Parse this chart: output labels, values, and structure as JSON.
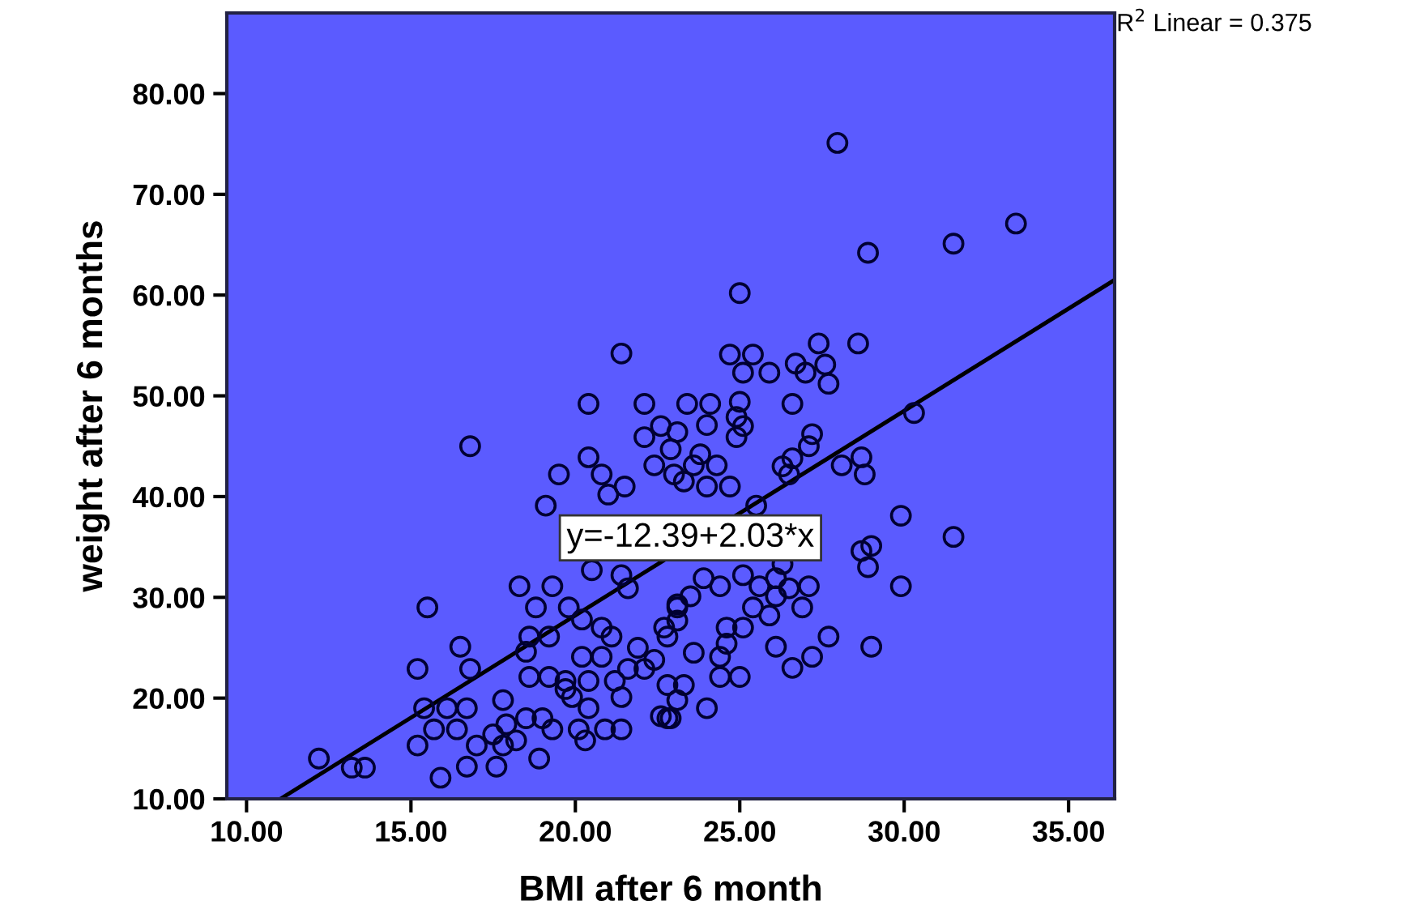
{
  "chart_data": {
    "type": "scatter",
    "xlabel": "BMI after 6 month",
    "ylabel": "weight after 6 months",
    "xlim": [
      9.4,
      36.4
    ],
    "ylim": [
      10,
      88
    ],
    "xticks": [
      {
        "value": 10,
        "label": "10.00"
      },
      {
        "value": 15,
        "label": "15.00"
      },
      {
        "value": 20,
        "label": "20.00"
      },
      {
        "value": 25,
        "label": "25.00"
      },
      {
        "value": 30,
        "label": "30.00"
      },
      {
        "value": 35,
        "label": "35.00"
      }
    ],
    "yticks": [
      {
        "value": 10,
        "label": "10.00"
      },
      {
        "value": 20,
        "label": "20.00"
      },
      {
        "value": 30,
        "label": "30.00"
      },
      {
        "value": 40,
        "label": "40.00"
      },
      {
        "value": 50,
        "label": "50.00"
      },
      {
        "value": 60,
        "label": "60.00"
      },
      {
        "value": 70,
        "label": "70.00"
      },
      {
        "value": 80,
        "label": "80.00"
      }
    ],
    "grid": false,
    "series": [
      {
        "color": "#000033",
        "marker": "circle",
        "x": [
          27.97,
          28.9,
          31.5,
          33.4,
          25.0,
          28.6,
          27.4,
          24.7,
          25.4,
          25.1,
          25.9,
          26.7,
          27.0,
          27.6,
          27.7,
          23.4,
          24.1,
          25.0,
          26.6,
          30.3,
          21.4,
          20.4,
          22.1,
          16.8,
          20.4,
          19.5,
          20.8,
          19.1,
          21.0,
          21.5,
          22.1,
          22.6,
          22.9,
          22.4,
          23.0,
          15.5,
          18.3,
          19.3,
          18.8,
          19.8,
          20.2,
          20.5,
          21.4,
          21.6,
          16.5,
          15.2,
          16.8,
          18.6,
          18.5,
          19.2,
          18.6,
          19.2,
          20.2,
          20.8,
          21.1,
          21.9,
          19.7,
          19.9,
          20.4,
          21.2,
          21.4,
          22.1,
          22.8,
          22.6,
          23.1,
          15.4,
          16.1,
          16.7,
          15.7,
          15.2,
          16.4,
          17.0,
          17.5,
          17.9,
          17.8,
          18.5,
          19.0,
          19.3,
          17.8,
          18.2,
          16.7,
          17.6,
          18.9,
          15.9,
          12.2,
          13.2,
          13.6,
          20.1,
          20.3,
          20.9,
          21.4,
          22.8,
          19.7,
          20.4,
          21.6,
          22.4,
          23.1,
          23.1,
          22.7,
          22.8,
          20.8,
          28.7,
          28.1,
          28.8,
          27.2,
          27.1,
          26.6,
          26.3,
          26.5,
          29.9,
          31.5,
          29.9,
          29.0,
          27.7,
          27.2,
          26.6,
          26.1,
          29.0,
          28.9,
          28.7,
          27.1,
          26.9,
          26.5,
          26.1,
          25.9,
          25.4,
          25.1,
          24.6,
          24.4,
          24.6,
          25.0,
          24.4,
          23.6,
          24.0,
          23.3,
          22.9,
          24.4,
          23.9,
          23.5,
          23.1,
          25.6,
          25.1,
          26.1,
          26.3,
          25.5,
          24.0,
          24.9,
          24.9,
          25.1,
          23.1,
          23.6,
          24.3,
          24.7,
          24.0,
          23.3,
          23.8
        ],
        "values": [
          75.1,
          64.2,
          65.1,
          67.1,
          60.2,
          55.2,
          55.2,
          54.1,
          54.1,
          52.3,
          52.3,
          53.2,
          52.3,
          53.1,
          51.2,
          49.2,
          49.2,
          49.4,
          49.2,
          48.3,
          54.2,
          49.2,
          49.2,
          45.0,
          43.9,
          42.2,
          42.2,
          39.1,
          40.2,
          41.0,
          45.9,
          47.0,
          44.7,
          43.1,
          42.2,
          29.0,
          31.1,
          31.1,
          29.0,
          29.0,
          27.8,
          32.7,
          32.2,
          30.9,
          25.1,
          22.9,
          22.9,
          26.1,
          24.6,
          26.1,
          22.1,
          22.1,
          24.1,
          24.1,
          26.1,
          25.0,
          21.7,
          20.1,
          19.0,
          21.7,
          20.1,
          22.9,
          21.3,
          18.2,
          19.8,
          19.0,
          19.0,
          19.0,
          16.9,
          15.3,
          16.9,
          15.3,
          16.4,
          17.4,
          19.8,
          18.0,
          18.0,
          16.9,
          15.3,
          15.8,
          13.2,
          13.2,
          14.0,
          12.1,
          14.0,
          13.1,
          13.1,
          16.9,
          15.8,
          16.9,
          16.9,
          18.0,
          20.9,
          21.7,
          22.9,
          23.8,
          27.7,
          29.3,
          27.0,
          26.1,
          27.0,
          43.9,
          43.1,
          42.2,
          46.2,
          45.0,
          43.8,
          43.0,
          42.2,
          38.1,
          36.0,
          31.1,
          25.1,
          26.1,
          24.1,
          23.0,
          25.1,
          35.1,
          33.0,
          34.6,
          31.1,
          29.0,
          30.9,
          30.1,
          28.2,
          29.0,
          27.0,
          27.0,
          24.1,
          25.4,
          22.1,
          22.1,
          24.5,
          19.0,
          21.3,
          18.0,
          31.1,
          31.9,
          30.1,
          29.0,
          31.1,
          32.2,
          31.9,
          33.3,
          39.1,
          47.1,
          47.9,
          45.9,
          47.0,
          46.4,
          43.1,
          43.1,
          41.0,
          41.0,
          41.5,
          44.2
        ]
      },
      {
        "type": "line",
        "color": "#000000",
        "x": [
          11.03,
          36.4
        ],
        "values": [
          10.0,
          61.5
        ]
      }
    ],
    "annotations": [
      {
        "text": "y=-12.39+2.03*x",
        "x": 23.5,
        "y": 35.9
      },
      "R$^{2}$ Linear = 0.375"
    ]
  }
}
